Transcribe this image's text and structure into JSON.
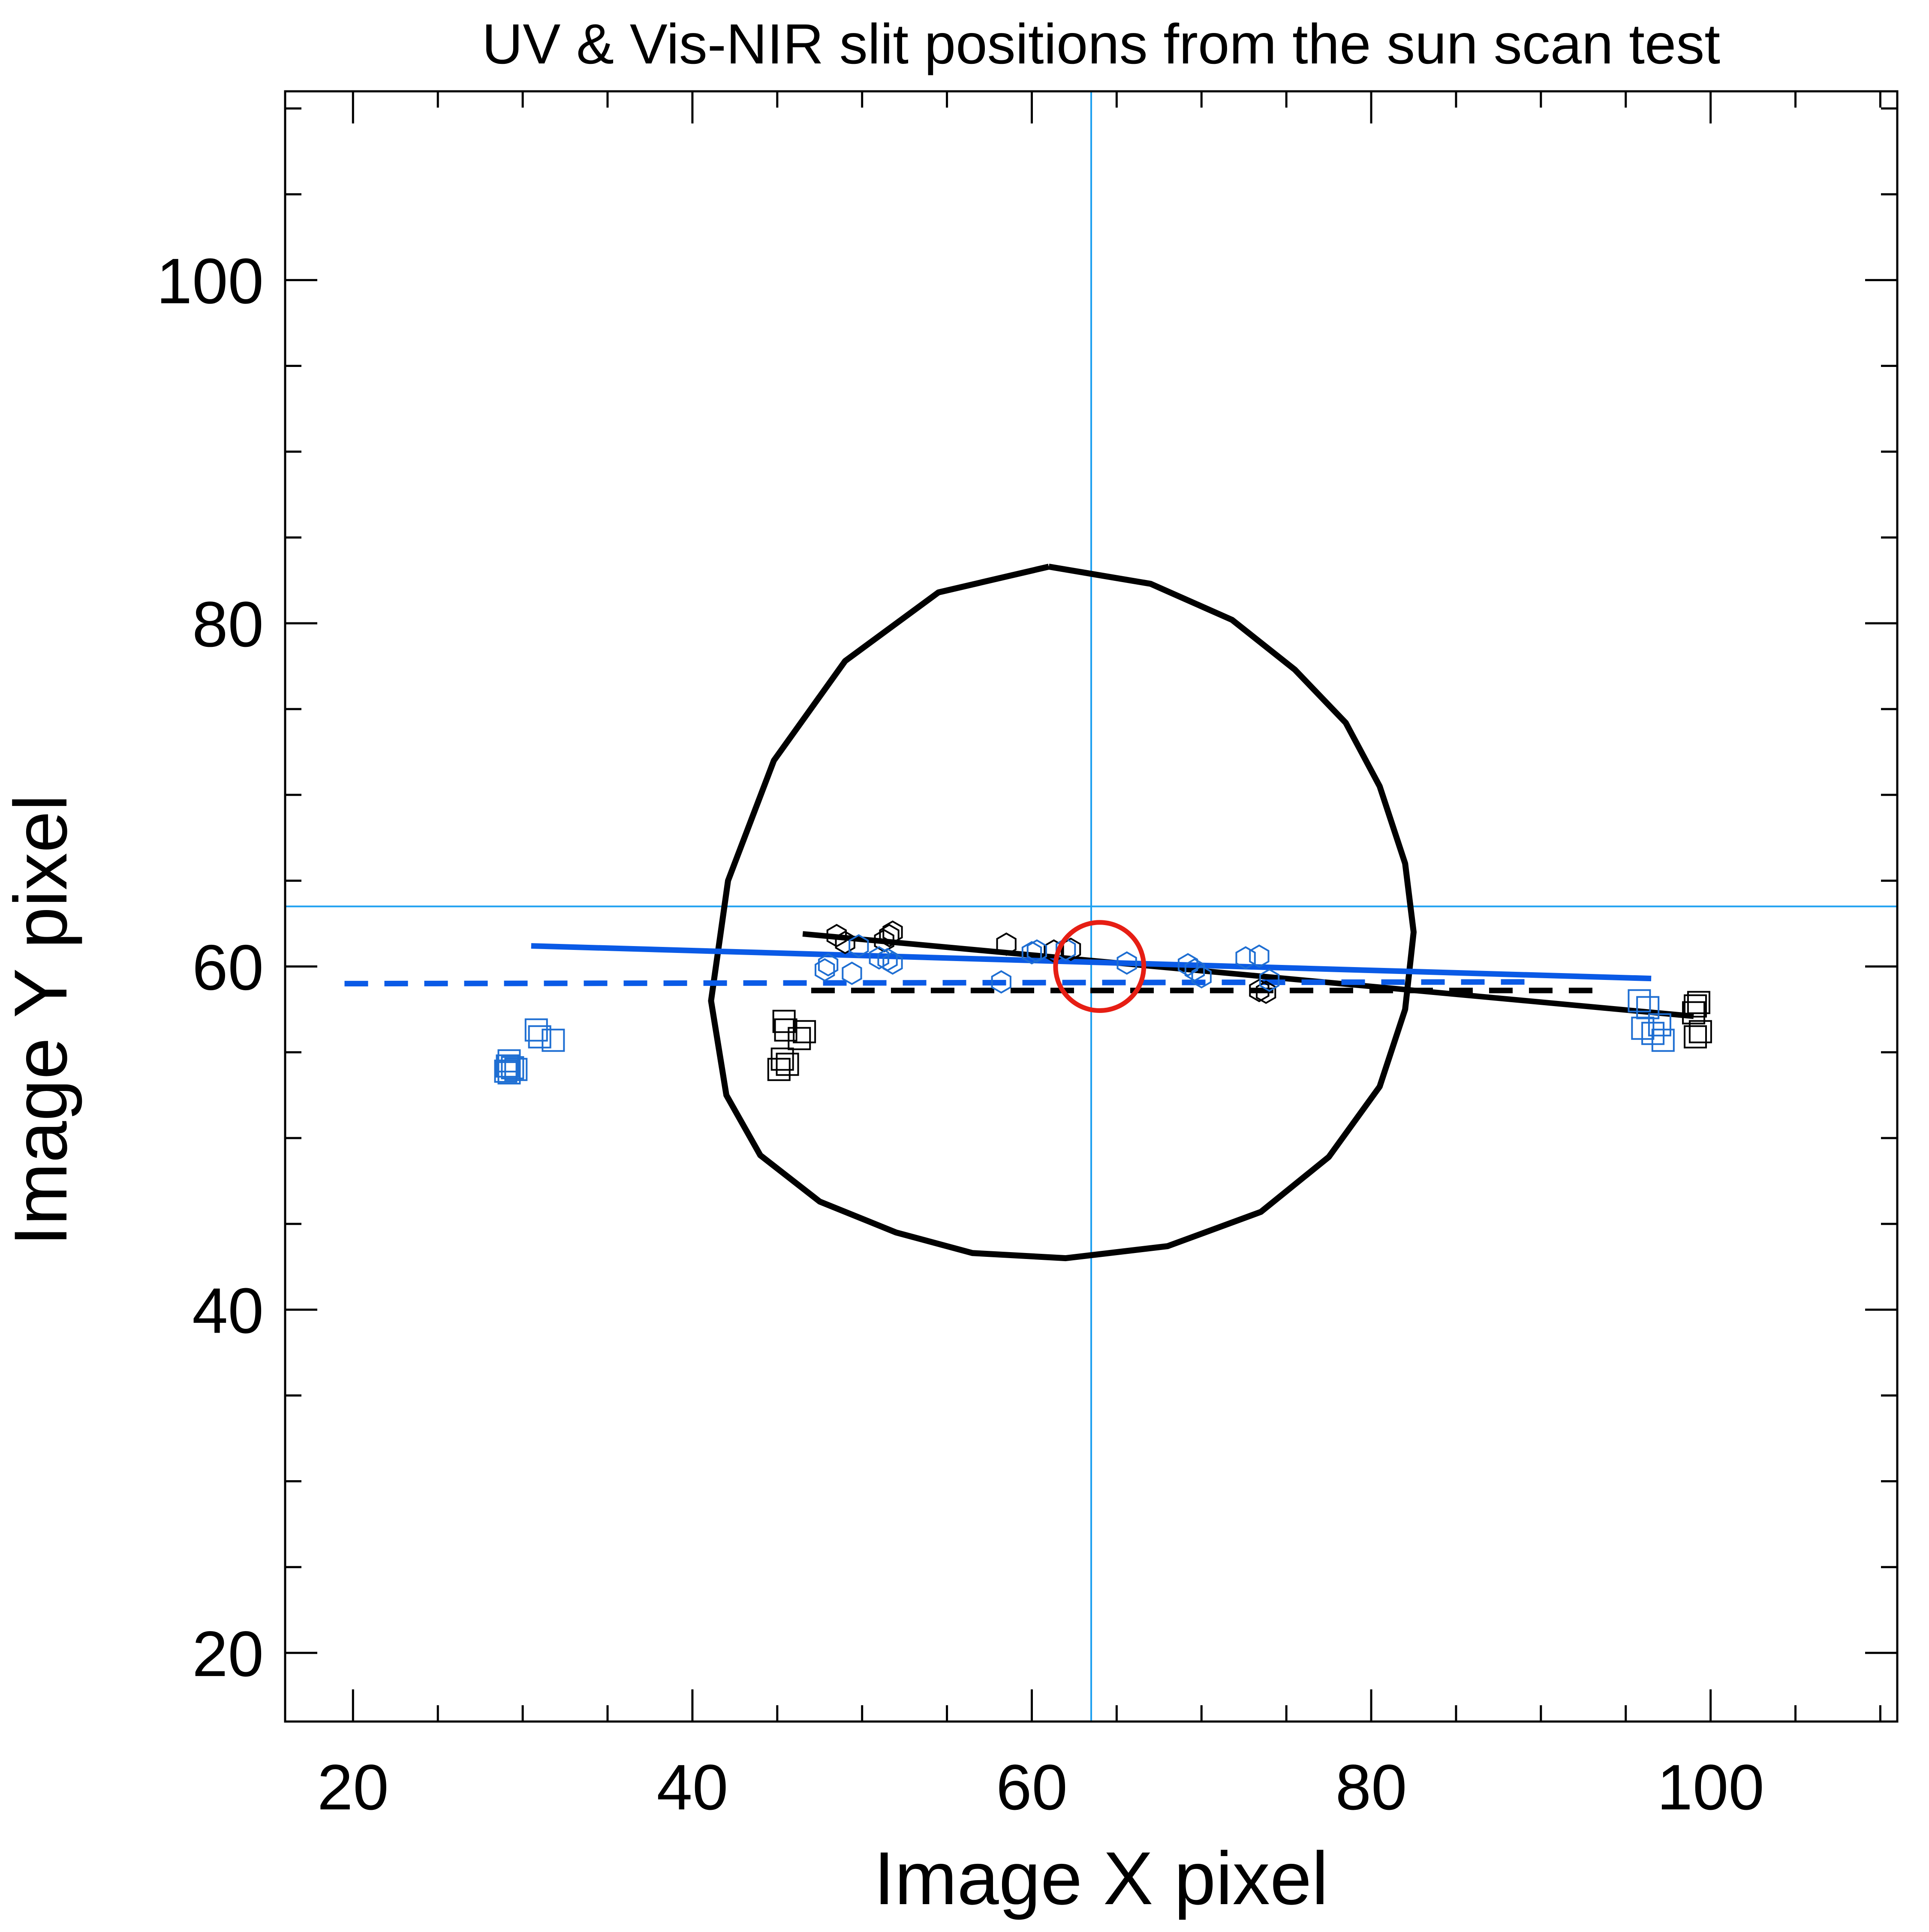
{
  "chart_data": {
    "type": "scatter",
    "title": "UV & Vis-NIR slit positions from the sun scan test",
    "xlabel": "Image X pixel",
    "ylabel": "Image Y pixel",
    "xlim": [
      16,
      111
    ],
    "ylim": [
      16,
      111
    ],
    "x_ticks": [
      20,
      40,
      60,
      80,
      100
    ],
    "y_ticks": [
      20,
      40,
      60,
      80,
      100
    ],
    "x_minor_step": 5,
    "y_minor_step": 5,
    "grid": false,
    "colors": {
      "black": "#000000",
      "blue": "#0a5ae6",
      "light_blue": "#1ea0f0",
      "red": "#e61e14",
      "point_blue": "#1e6ed2"
    },
    "reference_lines": {
      "x": 63.5,
      "y": 63.5
    },
    "sun_outline": {
      "points": [
        [
          61.0,
          83.3
        ],
        [
          54.5,
          81.8
        ],
        [
          49.0,
          77.8
        ],
        [
          44.8,
          72.0
        ],
        [
          42.1,
          65.0
        ],
        [
          41.1,
          58.0
        ],
        [
          42.0,
          52.5
        ],
        [
          44.0,
          49.0
        ],
        [
          47.5,
          46.3
        ],
        [
          52.0,
          44.5
        ],
        [
          56.5,
          43.3
        ],
        [
          62.0,
          43.0
        ],
        [
          68.0,
          43.7
        ],
        [
          73.5,
          45.7
        ],
        [
          77.5,
          48.9
        ],
        [
          80.5,
          53.0
        ],
        [
          82.0,
          57.5
        ],
        [
          82.5,
          62.0
        ],
        [
          82.0,
          66.0
        ],
        [
          80.5,
          70.5
        ],
        [
          78.5,
          74.2
        ],
        [
          75.5,
          77.3
        ],
        [
          71.8,
          80.2
        ],
        [
          67.0,
          82.3
        ],
        [
          61.0,
          83.3
        ]
      ]
    },
    "target_circle": {
      "x": 64.0,
      "y": 60.0,
      "r": 2.6
    },
    "fit_lines": [
      {
        "color": "black",
        "style": "solid",
        "points": [
          [
            46.5,
            61.9
          ],
          [
            99.0,
            57.1
          ]
        ]
      },
      {
        "color": "blue",
        "style": "solid",
        "points": [
          [
            30.5,
            61.2
          ],
          [
            96.5,
            59.3
          ]
        ]
      },
      {
        "color": "blue",
        "style": "dashed",
        "points": [
          [
            19.5,
            59.0
          ],
          [
            89.5,
            59.1
          ]
        ]
      },
      {
        "color": "black",
        "style": "dashed",
        "points": [
          [
            47.0,
            58.6
          ],
          [
            93.5,
            58.6
          ]
        ]
      }
    ],
    "series": [
      {
        "color": "black",
        "marker": "hexagon",
        "points": [
          [
            48.5,
            61.8
          ],
          [
            49.0,
            61.4
          ],
          [
            51.3,
            61.5
          ],
          [
            51.6,
            61.8
          ],
          [
            51.8,
            62.0
          ],
          [
            58.5,
            61.3
          ],
          [
            61.3,
            60.9
          ],
          [
            62.3,
            61.0
          ],
          [
            73.4,
            58.6
          ],
          [
            73.8,
            58.5
          ]
        ]
      },
      {
        "color": "point_blue",
        "marker": "hexagon",
        "points": [
          [
            47.8,
            59.8
          ],
          [
            48.0,
            60.1
          ],
          [
            49.4,
            59.6
          ],
          [
            49.8,
            61.2
          ],
          [
            51.0,
            60.5
          ],
          [
            51.5,
            60.4
          ],
          [
            51.8,
            60.2
          ],
          [
            58.2,
            59.1
          ],
          [
            60.0,
            60.8
          ],
          [
            60.3,
            60.9
          ],
          [
            62.0,
            61.0
          ],
          [
            65.6,
            60.2
          ],
          [
            69.2,
            60.1
          ],
          [
            69.6,
            59.8
          ],
          [
            70.0,
            59.4
          ],
          [
            72.6,
            60.5
          ],
          [
            73.4,
            60.6
          ],
          [
            74.0,
            59.2
          ]
        ]
      },
      {
        "color": "black",
        "marker": "square",
        "points": [
          [
            45.1,
            54.0
          ],
          [
            45.3,
            54.6
          ],
          [
            45.6,
            54.3
          ],
          [
            45.4,
            56.8
          ],
          [
            45.5,
            56.3
          ],
          [
            46.3,
            55.8
          ],
          [
            46.6,
            56.2
          ],
          [
            99.1,
            57.7
          ],
          [
            99.3,
            57.9
          ],
          [
            99.0,
            57.3
          ],
          [
            99.4,
            56.2
          ],
          [
            99.1,
            55.9
          ]
        ]
      },
      {
        "color": "point_blue",
        "marker": "square",
        "points": [
          [
            29.0,
            53.9
          ],
          [
            29.1,
            54.2
          ],
          [
            29.2,
            54.5
          ],
          [
            29.4,
            54.1
          ],
          [
            29.2,
            53.8
          ],
          [
            29.6,
            54.0
          ],
          [
            30.8,
            56.3
          ],
          [
            31.0,
            55.9
          ],
          [
            31.8,
            55.7
          ],
          [
            95.8,
            58.0
          ],
          [
            96.3,
            57.6
          ],
          [
            96.0,
            56.4
          ],
          [
            96.6,
            56.1
          ],
          [
            97.0,
            56.6
          ],
          [
            97.2,
            55.7
          ]
        ]
      }
    ]
  }
}
